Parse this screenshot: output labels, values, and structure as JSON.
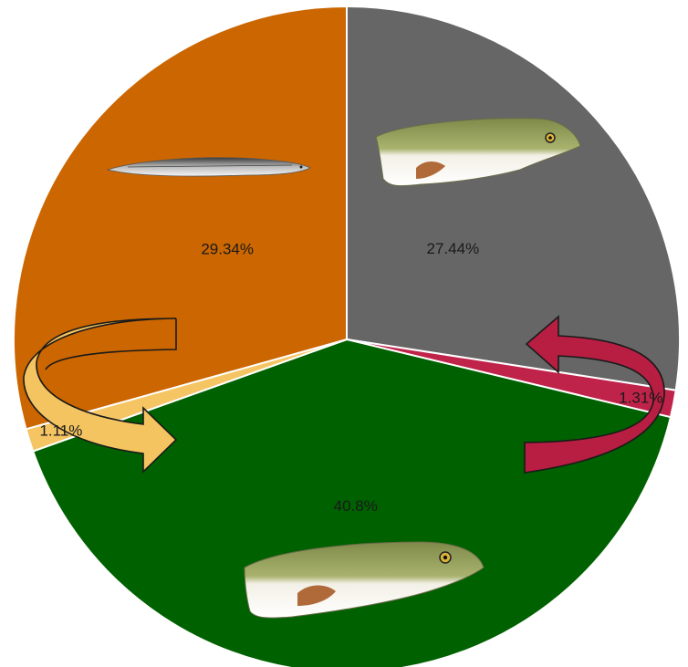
{
  "chart_data": {
    "type": "pie",
    "slices": [
      {
        "label": "27.44%",
        "value": 27.44,
        "color": "#666666"
      },
      {
        "label": "1.31%",
        "value": 1.31,
        "color": "#c0234a"
      },
      {
        "label": "40.8%",
        "value": 40.8,
        "color": "#006100"
      },
      {
        "label": "1.11%",
        "value": 1.11,
        "color": "#f5c463"
      },
      {
        "label": "29.34%",
        "value": 29.34,
        "color": "#cc6600"
      }
    ],
    "start_angle": "12 o'clock",
    "direction": "clockwise",
    "legend": "none",
    "annotations": [
      {
        "type": "curved-arrow",
        "color": "#f0c060",
        "side": "left"
      },
      {
        "type": "curved-arrow",
        "color": "#a01a3a",
        "side": "right"
      },
      {
        "type": "image",
        "subject": "fish",
        "slice": "29.34%"
      },
      {
        "type": "image",
        "subject": "fish",
        "slice": "27.44%"
      },
      {
        "type": "image",
        "subject": "fish",
        "slice": "40.8%"
      }
    ]
  }
}
